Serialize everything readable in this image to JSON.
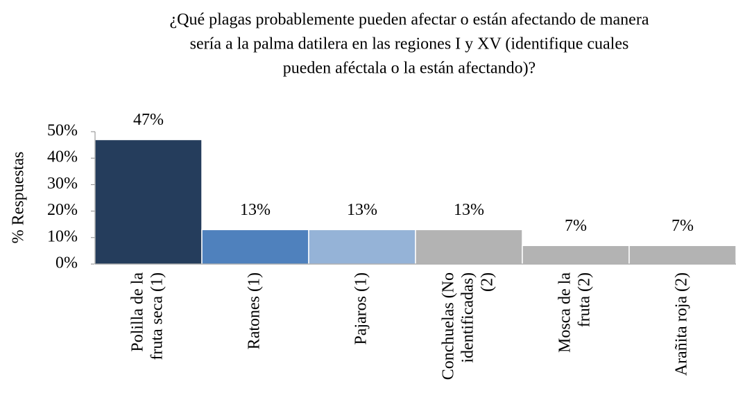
{
  "chart_data": {
    "type": "bar",
    "title": [
      "¿Qué plagas probablemente pueden afectar o están afectando de manera",
      "sería a la palma datilera en las regiones I y XV (identifique cuales",
      "pueden aféctala o la están afectando)?"
    ],
    "y_label": "% Respuestas",
    "categories": [
      [
        "Polilla de la",
        "fruta seca (1)"
      ],
      [
        "Ratones (1)"
      ],
      [
        "Pajaros (1)"
      ],
      [
        "Conchuelas (No",
        "identificadas)",
        "(2)"
      ],
      [
        "Mosca de la",
        "fruta (2)"
      ],
      [
        "Arañita roja (2)"
      ]
    ],
    "values": [
      47,
      13,
      13,
      13,
      7,
      7
    ],
    "value_labels": [
      "47%",
      "13%",
      "13%",
      "13%",
      "7%",
      "7%"
    ],
    "colors": [
      "#253d5c",
      "#4f81bd",
      "#95b3d7",
      "#b3b3b3",
      "#b3b3b3",
      "#b3b3b3"
    ],
    "ylim": [
      0,
      50
    ],
    "yticks": [
      {
        "value": 0,
        "label": "0%"
      },
      {
        "value": 10,
        "label": "10%"
      },
      {
        "value": 20,
        "label": "20%"
      },
      {
        "value": 30,
        "label": "30%"
      },
      {
        "value": 40,
        "label": "40%"
      },
      {
        "value": 50,
        "label": "50%"
      }
    ]
  }
}
